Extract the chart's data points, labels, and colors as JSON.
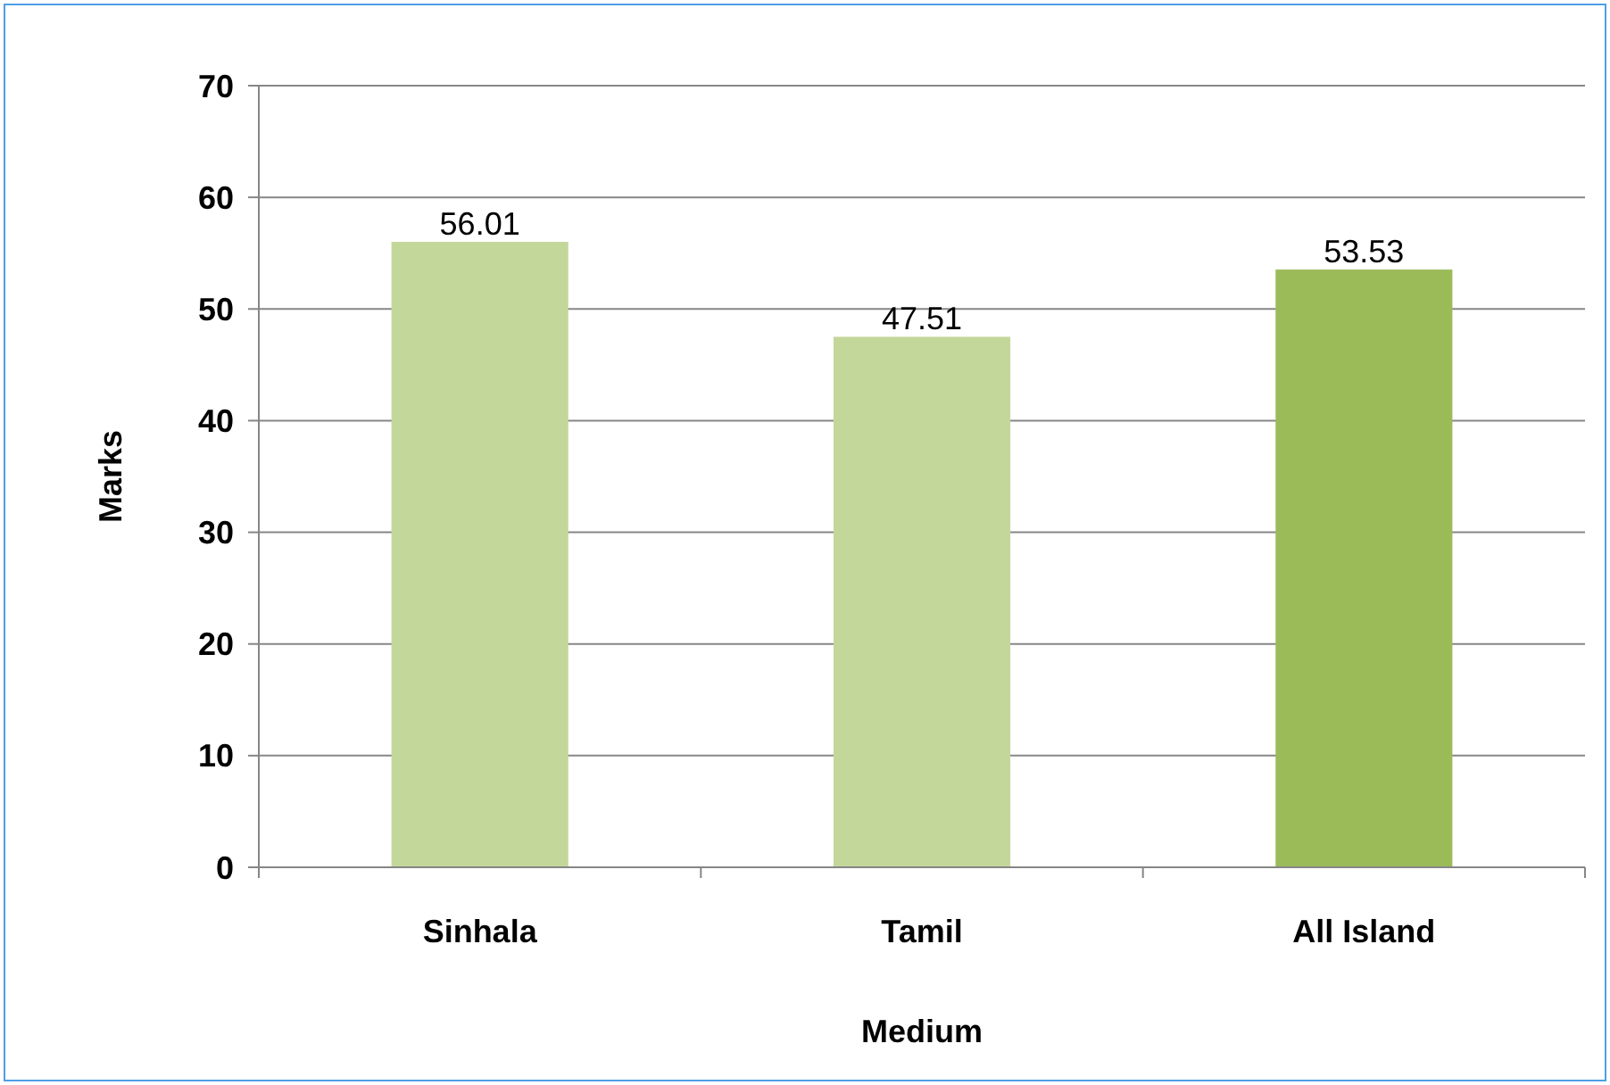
{
  "chart_data": {
    "type": "bar",
    "xlabel": "Medium",
    "ylabel": "Marks",
    "categories": [
      "Sinhala",
      "Tamil",
      "All Island"
    ],
    "values": [
      56.01,
      47.51,
      53.53
    ],
    "colors": [
      "#c4d79b",
      "#c4d79b",
      "#9bbb59"
    ],
    "ylim": [
      0,
      70
    ],
    "yticks": [
      0,
      10,
      20,
      30,
      40,
      50,
      60,
      70
    ],
    "grid": "y",
    "data_labels": true
  }
}
